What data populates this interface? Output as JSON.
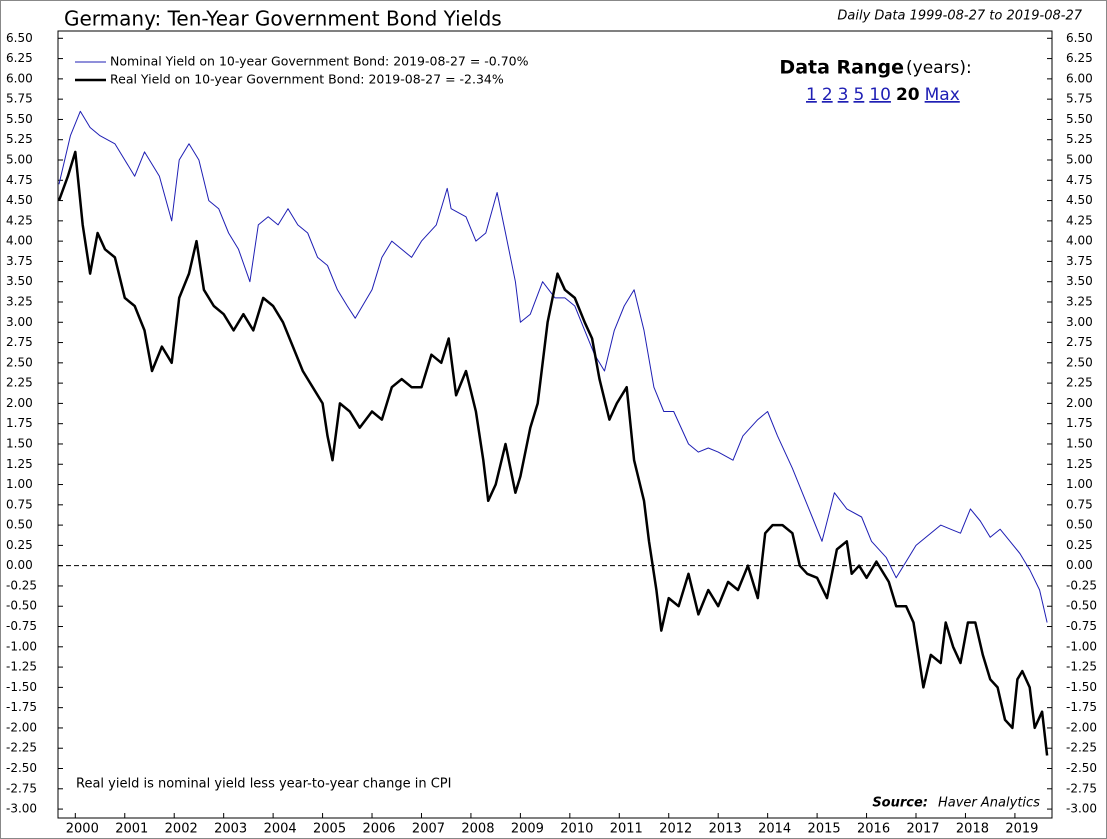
{
  "chart_data": {
    "type": "line",
    "title": "Germany: Ten-Year Government Bond Yields",
    "subtitle": "Daily Data 1999-08-27 to 2019-08-27",
    "note": "Real yield is nominal yield less year-to-year change in CPI",
    "source_label": "Source:",
    "source": "Haver Analytics",
    "data_range": {
      "label": "Data Range",
      "unit": "(years):",
      "options": [
        "1",
        "2",
        "3",
        "5",
        "10",
        "20",
        "Max"
      ],
      "selected": "20"
    },
    "zero_line": true,
    "legend": "upper left",
    "xlim": [
      1999.65,
      2019.75
    ],
    "xticks": [
      2000,
      2001,
      2002,
      2003,
      2004,
      2005,
      2006,
      2007,
      2008,
      2009,
      2010,
      2011,
      2012,
      2013,
      2014,
      2015,
      2016,
      2017,
      2018,
      2019
    ],
    "ylim": [
      -3.11,
      6.59
    ],
    "yticks": [
      {
        "value": 6.5,
        "label": "6.50"
      },
      6.25,
      {
        "value": 6,
        "label": "6.00"
      },
      5.75,
      {
        "value": 5.5,
        "label": "5.50"
      },
      5.25,
      {
        "value": 5,
        "label": "5.00"
      },
      4.75,
      {
        "value": 4.5,
        "label": "4.50"
      },
      4.25,
      {
        "value": 4,
        "label": "4.00"
      },
      3.75,
      {
        "value": 3.5,
        "label": "3.50"
      },
      3.25,
      {
        "value": 3,
        "label": "3.00"
      },
      2.75,
      {
        "value": 2.5,
        "label": "2.50"
      },
      2.25,
      {
        "value": 2,
        "label": "2.00"
      },
      1.75,
      {
        "value": 1.5,
        "label": "1.50"
      },
      1.25,
      {
        "value": 1,
        "label": "1.00"
      },
      0.75,
      {
        "value": 0.5,
        "label": "0.50"
      },
      0.25,
      {
        "value": 0,
        "label": "0.00"
      },
      -0.25,
      {
        "value": -0.5,
        "label": "-0.50"
      },
      -0.75,
      {
        "value": -1,
        "label": "-1.00"
      },
      -1.25,
      {
        "value": -1.5,
        "label": "-1.50"
      },
      -1.75,
      {
        "value": -2,
        "label": "-2.00"
      },
      -2.25,
      {
        "value": -2.5,
        "label": "-2.50"
      },
      -2.75,
      {
        "value": -3,
        "label": "-3.00"
      }
    ],
    "series": [
      {
        "name": "Nominal Yield on 10-year Government Bond: 2019-08-27 = -0.70%",
        "color": "#1f1fb4",
        "width": 1,
        "x": [
          1999.67,
          1999.9,
          2000.1,
          2000.3,
          2000.5,
          2000.8,
          2001.0,
          2001.2,
          2001.4,
          2001.7,
          2001.95,
          2002.1,
          2002.3,
          2002.5,
          2002.7,
          2002.9,
          2003.1,
          2003.3,
          2003.53,
          2003.7,
          2003.9,
          2004.1,
          2004.3,
          2004.5,
          2004.7,
          2004.9,
          2005.1,
          2005.3,
          2005.5,
          2005.66,
          2006.0,
          2006.2,
          2006.4,
          2006.6,
          2006.8,
          2007.0,
          2007.3,
          2007.52,
          2007.6,
          2007.9,
          2008.1,
          2008.3,
          2008.53,
          2008.7,
          2008.9,
          2009.0,
          2009.2,
          2009.45,
          2009.7,
          2009.9,
          2010.1,
          2010.3,
          2010.5,
          2010.7,
          2010.9,
          2011.1,
          2011.3,
          2011.5,
          2011.7,
          2011.9,
          2012.1,
          2012.4,
          2012.6,
          2012.8,
          2013.0,
          2013.3,
          2013.5,
          2013.8,
          2014.0,
          2014.2,
          2014.5,
          2014.7,
          2014.9,
          2015.1,
          2015.35,
          2015.6,
          2015.9,
          2016.1,
          2016.4,
          2016.6,
          2016.8,
          2017.0,
          2017.2,
          2017.5,
          2017.7,
          2017.9,
          2018.1,
          2018.3,
          2018.5,
          2018.7,
          2018.9,
          2019.1,
          2019.3,
          2019.5,
          2019.65
        ],
        "values": [
          4.7,
          5.3,
          5.6,
          5.4,
          5.3,
          5.2,
          5.0,
          4.8,
          5.1,
          4.8,
          4.25,
          5.0,
          5.2,
          5.0,
          4.5,
          4.4,
          4.1,
          3.9,
          3.5,
          4.2,
          4.3,
          4.2,
          4.4,
          4.2,
          4.1,
          3.8,
          3.7,
          3.4,
          3.2,
          3.05,
          3.4,
          3.8,
          4.0,
          3.9,
          3.8,
          4.0,
          4.2,
          4.65,
          4.4,
          4.3,
          4.0,
          4.1,
          4.6,
          4.1,
          3.5,
          3.0,
          3.1,
          3.5,
          3.3,
          3.3,
          3.2,
          2.9,
          2.6,
          2.4,
          2.9,
          3.2,
          3.4,
          2.9,
          2.2,
          1.9,
          1.9,
          1.5,
          1.4,
          1.45,
          1.4,
          1.3,
          1.6,
          1.8,
          1.9,
          1.6,
          1.2,
          0.9,
          0.6,
          0.3,
          0.9,
          0.7,
          0.6,
          0.3,
          0.1,
          -0.15,
          0.05,
          0.25,
          0.35,
          0.5,
          0.45,
          0.4,
          0.7,
          0.55,
          0.35,
          0.45,
          0.3,
          0.15,
          -0.05,
          -0.3,
          -0.7
        ]
      },
      {
        "name": "Real Yield on 10-year Government Bond: 2019-08-27 = -2.34%",
        "color": "#000000",
        "width": 2.5,
        "x": [
          1999.67,
          1999.85,
          2000.0,
          2000.15,
          2000.3,
          2000.45,
          2000.6,
          2000.8,
          2001.0,
          2001.2,
          2001.4,
          2001.55,
          2001.75,
          2001.95,
          2002.1,
          2002.3,
          2002.45,
          2002.6,
          2002.8,
          2003.0,
          2003.2,
          2003.4,
          2003.6,
          2003.8,
          2004.0,
          2004.2,
          2004.4,
          2004.6,
          2004.8,
          2005.0,
          2005.1,
          2005.2,
          2005.35,
          2005.55,
          2005.75,
          2006.0,
          2006.2,
          2006.4,
          2006.6,
          2006.8,
          2007.0,
          2007.2,
          2007.4,
          2007.55,
          2007.7,
          2007.9,
          2008.1,
          2008.25,
          2008.35,
          2008.5,
          2008.7,
          2008.9,
          2009.0,
          2009.2,
          2009.35,
          2009.55,
          2009.75,
          2009.9,
          2010.1,
          2010.3,
          2010.45,
          2010.6,
          2010.8,
          2010.95,
          2011.15,
          2011.3,
          2011.5,
          2011.6,
          2011.75,
          2011.85,
          2012.0,
          2012.2,
          2012.4,
          2012.6,
          2012.8,
          2013.0,
          2013.2,
          2013.4,
          2013.6,
          2013.8,
          2013.95,
          2014.1,
          2014.3,
          2014.5,
          2014.65,
          2014.8,
          2015.0,
          2015.2,
          2015.4,
          2015.6,
          2015.7,
          2015.85,
          2016.0,
          2016.2,
          2016.45,
          2016.6,
          2016.8,
          2016.95,
          2017.05,
          2017.15,
          2017.3,
          2017.5,
          2017.6,
          2017.75,
          2017.9,
          2018.05,
          2018.2,
          2018.35,
          2018.5,
          2018.65,
          2018.8,
          2018.95,
          2019.05,
          2019.15,
          2019.3,
          2019.4,
          2019.55,
          2019.65
        ],
        "values": [
          4.5,
          4.8,
          5.1,
          4.2,
          3.6,
          4.1,
          3.9,
          3.8,
          3.3,
          3.2,
          2.9,
          2.4,
          2.7,
          2.5,
          3.3,
          3.6,
          4.0,
          3.4,
          3.2,
          3.1,
          2.9,
          3.1,
          2.9,
          3.3,
          3.2,
          3.0,
          2.7,
          2.4,
          2.2,
          2.0,
          1.6,
          1.3,
          2.0,
          1.9,
          1.7,
          1.9,
          1.8,
          2.2,
          2.3,
          2.2,
          2.2,
          2.6,
          2.5,
          2.8,
          2.1,
          2.4,
          1.9,
          1.3,
          0.8,
          1.0,
          1.5,
          0.9,
          1.1,
          1.7,
          2.0,
          3.0,
          3.6,
          3.4,
          3.3,
          3.0,
          2.8,
          2.3,
          1.8,
          2.0,
          2.2,
          1.3,
          0.8,
          0.3,
          -0.3,
          -0.8,
          -0.4,
          -0.5,
          -0.1,
          -0.6,
          -0.3,
          -0.5,
          -0.2,
          -0.3,
          0.0,
          -0.4,
          0.4,
          0.5,
          0.5,
          0.4,
          0.0,
          -0.1,
          -0.15,
          -0.4,
          0.2,
          0.3,
          -0.1,
          0.0,
          -0.15,
          0.05,
          -0.2,
          -0.5,
          -0.5,
          -0.7,
          -1.1,
          -1.5,
          -1.1,
          -1.2,
          -0.7,
          -1.0,
          -1.2,
          -0.7,
          -0.7,
          -1.1,
          -1.4,
          -1.5,
          -1.9,
          -2.0,
          -1.4,
          -1.3,
          -1.5,
          -2.0,
          -1.8,
          -2.34
        ]
      }
    ]
  }
}
